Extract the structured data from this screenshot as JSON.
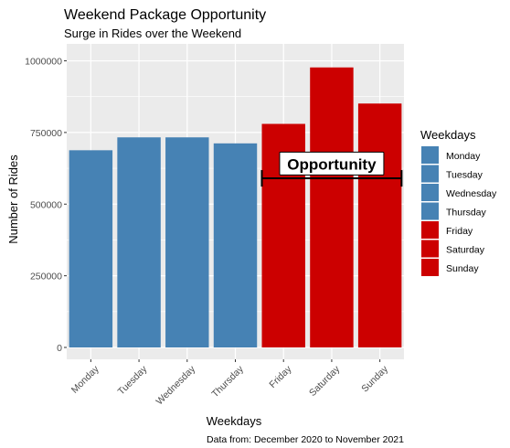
{
  "chart_data": {
    "type": "bar",
    "title": "Weekend Package Opportunity",
    "subtitle": "Surge in Rides over the Weekend",
    "xlabel": "Weekdays",
    "ylabel": "Number of Rides",
    "caption": "Data from: December 2020 to November 2021",
    "categories": [
      "Monday",
      "Tuesday",
      "Wednesday",
      "Thursday",
      "Friday",
      "Saturday",
      "Sunday"
    ],
    "values": [
      688000,
      733000,
      733000,
      712000,
      780000,
      977000,
      851000
    ],
    "colors": [
      "#4682B4",
      "#4682B4",
      "#4682B4",
      "#4682B4",
      "#CC0000",
      "#CC0000",
      "#CC0000"
    ],
    "ylim": [
      0,
      1040000
    ],
    "yticks": [
      0,
      250000,
      500000,
      750000,
      1000000
    ],
    "ytick_labels": [
      "0",
      "250000",
      "500000",
      "750000",
      "1000000"
    ],
    "grid": true,
    "legend": {
      "title": "Weekdays",
      "placement": "right",
      "entries": [
        "Monday",
        "Tuesday",
        "Wednesday",
        "Thursday",
        "Friday",
        "Saturday",
        "Sunday"
      ]
    },
    "annotation": {
      "text": "Opportunity",
      "y_value": 640000,
      "bracket_y_value": 590000,
      "from_category": "Friday",
      "to_category": "Sunday"
    }
  }
}
